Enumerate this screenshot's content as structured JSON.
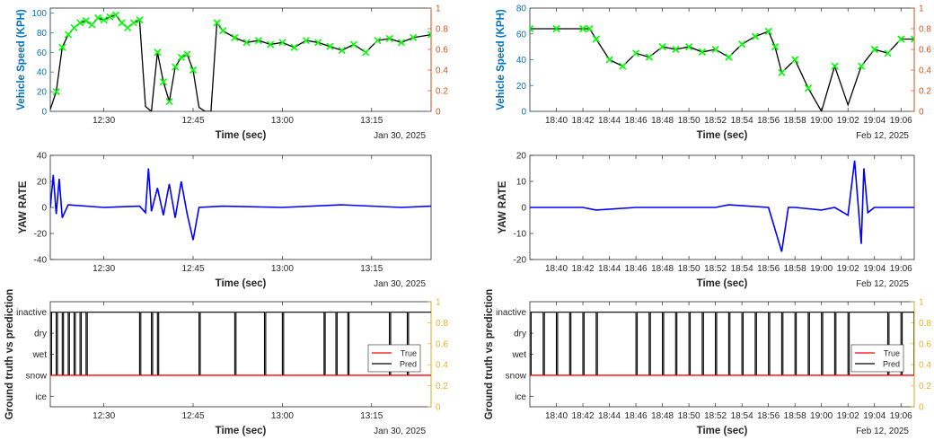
{
  "colors": {
    "speed_axis": "#0072BD",
    "right_axis_speed": "#D95319",
    "right_axis_gt": "#EDB120",
    "speed_line": "#000000",
    "speed_marker": "#00FF00",
    "yaw_line": "#0000FF",
    "true_line": "#FF0000",
    "pred_line": "#000000"
  },
  "chart_data": [
    {
      "type": "line",
      "panel": "speed-left",
      "xlabel": "Time (sec)",
      "ylabel": "Vehicle Speed (KPH)",
      "date_label": "Jan 30, 2025",
      "xlim": [
        "12:21",
        "13:25"
      ],
      "x_ticks": [
        "12:30",
        "12:45",
        "13:00",
        "13:15"
      ],
      "ylim": [
        0,
        105
      ],
      "y_ticks": [
        "0",
        "20",
        "40",
        "60",
        "80",
        "100"
      ],
      "right_ticks": [
        "0",
        "0.2",
        "0.4",
        "0.6",
        "0.8",
        "1"
      ],
      "series": [
        {
          "style": "line+x-marker",
          "x": [
            "12:21",
            "12:22",
            "12:23",
            "12:24",
            "12:25",
            "12:26",
            "12:27",
            "12:28",
            "12:29",
            "12:30",
            "12:31",
            "12:32",
            "12:33",
            "12:34",
            "12:35",
            "12:36",
            "12:37",
            "12:38",
            "12:39",
            "12:40",
            "12:41",
            "12:42",
            "12:43",
            "12:44",
            "12:45",
            "12:46",
            "12:47",
            "12:48",
            "12:49",
            "12:50",
            "12:52",
            "12:54",
            "12:56",
            "12:58",
            "13:00",
            "13:02",
            "13:04",
            "13:06",
            "13:08",
            "13:10",
            "13:12",
            "13:14",
            "13:16",
            "13:18",
            "13:20",
            "13:22",
            "13:25"
          ],
          "y": [
            2,
            20,
            65,
            78,
            85,
            90,
            92,
            88,
            95,
            93,
            96,
            98,
            90,
            85,
            90,
            93,
            5,
            0,
            60,
            30,
            10,
            45,
            55,
            58,
            42,
            4,
            0,
            0,
            90,
            82,
            75,
            70,
            72,
            68,
            70,
            65,
            72,
            70,
            66,
            62,
            68,
            60,
            72,
            74,
            70,
            75,
            78
          ]
        }
      ]
    },
    {
      "type": "line",
      "panel": "speed-right",
      "xlabel": "Time (sec)",
      "ylabel": "Vehicle Speed (KPH)",
      "date_label": "Feb 12, 2025",
      "xlim": [
        "18:38",
        "19:07"
      ],
      "x_ticks": [
        "18:40",
        "18:42",
        "18:44",
        "18:46",
        "18:48",
        "18:50",
        "18:52",
        "18:54",
        "18:56",
        "18:58",
        "19:00",
        "19:02",
        "19:04",
        "19:06"
      ],
      "ylim": [
        0,
        80
      ],
      "y_ticks": [
        "0",
        "20",
        "40",
        "60",
        "80"
      ],
      "right_ticks": [
        "0",
        "0.2",
        "0.4",
        "0.6",
        "0.8",
        "1"
      ],
      "series": [
        {
          "style": "line+x-marker",
          "x": [
            "18:38",
            "18:40",
            "18:42",
            "18:42.5",
            "18:43",
            "18:44",
            "18:45",
            "18:46",
            "18:47",
            "18:48",
            "18:49",
            "18:50",
            "18:51",
            "18:52",
            "18:53",
            "18:54",
            "18:55",
            "18:56",
            "18:56.5",
            "18:57",
            "18:58",
            "18:59",
            "19:00",
            "19:01",
            "19:02",
            "19:03",
            "19:04",
            "19:05",
            "19:06",
            "19:07"
          ],
          "y": [
            64,
            64,
            64,
            64,
            56,
            40,
            35,
            45,
            42,
            50,
            48,
            50,
            46,
            48,
            42,
            52,
            58,
            62,
            50,
            30,
            40,
            18,
            0,
            35,
            5,
            35,
            48,
            45,
            56,
            56
          ]
        }
      ]
    },
    {
      "type": "line",
      "panel": "yaw-left",
      "xlabel": "Time (sec)",
      "ylabel": "YAW RATE",
      "date_label": "Jan 30, 2025",
      "xlim": [
        "12:21",
        "13:25"
      ],
      "x_ticks": [
        "12:30",
        "12:45",
        "13:00",
        "13:15"
      ],
      "ylim": [
        -40,
        40
      ],
      "y_ticks": [
        "-40",
        "-20",
        "0",
        "20",
        "40"
      ],
      "series": [
        {
          "style": "line",
          "x": [
            "12:21",
            "12:21.5",
            "12:22",
            "12:22.5",
            "12:23",
            "12:24",
            "12:30",
            "12:36",
            "12:37",
            "12:37.5",
            "12:38",
            "12:39",
            "12:40",
            "12:41",
            "12:42",
            "12:43",
            "12:44",
            "12:45",
            "12:46",
            "12:50",
            "13:00",
            "13:10",
            "13:20",
            "13:25"
          ],
          "y": [
            0,
            25,
            -5,
            22,
            -8,
            2,
            0,
            1,
            -4,
            30,
            -3,
            15,
            -6,
            18,
            -8,
            20,
            -5,
            -25,
            0,
            1,
            0,
            2,
            0,
            1
          ]
        }
      ]
    },
    {
      "type": "line",
      "panel": "yaw-right",
      "xlabel": "Time (sec)",
      "ylabel": "YAW RATE",
      "date_label": "Feb 12, 2025",
      "xlim": [
        "18:38",
        "19:07"
      ],
      "x_ticks": [
        "18:40",
        "18:42",
        "18:44",
        "18:46",
        "18:48",
        "18:50",
        "18:52",
        "18:54",
        "18:56",
        "18:58",
        "19:00",
        "19:02",
        "19:04",
        "19:06"
      ],
      "ylim": [
        -20,
        20
      ],
      "y_ticks": [
        "-20",
        "-10",
        "0",
        "10",
        "20"
      ],
      "series": [
        {
          "style": "line",
          "x": [
            "18:38",
            "18:42",
            "18:43",
            "18:46",
            "18:52",
            "18:53",
            "18:56",
            "18:57",
            "18:57.5",
            "18:58",
            "19:00",
            "19:01",
            "19:02",
            "19:02.5",
            "19:03",
            "19:03.2",
            "19:03.5",
            "19:04",
            "19:07"
          ],
          "y": [
            0,
            0,
            -1,
            0,
            0,
            1,
            0,
            -17,
            0,
            0,
            -1,
            0,
            -3,
            18,
            -14,
            15,
            -2,
            0,
            0
          ]
        }
      ]
    },
    {
      "type": "line",
      "panel": "gt-left",
      "xlabel": "Time (sec)",
      "ylabel": "Ground truth vs prediction",
      "date_label": "Jan 30, 2025",
      "xlim": [
        "12:21",
        "13:25"
      ],
      "x_ticks": [
        "12:30",
        "12:45",
        "13:00",
        "13:15"
      ],
      "y_categories": [
        "ice",
        "snow",
        "wet",
        "dry",
        "inactive"
      ],
      "right_ticks": [
        "0",
        "0.2",
        "0.4",
        "0.6",
        "0.8",
        "1"
      ],
      "legend": {
        "position": "right",
        "entries": [
          "True",
          "Pred"
        ]
      },
      "series": [
        {
          "name": "True",
          "state": "snow"
        },
        {
          "name": "Pred",
          "base_state": "inactive",
          "switch_to": "snow",
          "switch_times": [
            "12:21",
            "12:22",
            "12:23",
            "12:24",
            "12:25",
            "12:26",
            "12:27",
            "12:36",
            "12:38",
            "12:39",
            "12:46",
            "12:52",
            "12:57",
            "13:00",
            "13:07",
            "13:09",
            "13:11",
            "13:18",
            "13:21"
          ]
        }
      ]
    },
    {
      "type": "line",
      "panel": "gt-right",
      "xlabel": "Time (sec)",
      "ylabel": "Ground truth vs prediction",
      "date_label": "Feb 12, 2025",
      "xlim": [
        "18:38",
        "19:07"
      ],
      "x_ticks": [
        "18:40",
        "18:42",
        "18:44",
        "18:46",
        "18:48",
        "18:50",
        "18:52",
        "18:54",
        "18:56",
        "18:58",
        "19:00",
        "19:02",
        "19:04",
        "19:06"
      ],
      "y_categories": [
        "ice",
        "snow",
        "wet",
        "dry",
        "inactive"
      ],
      "right_ticks": [
        "0",
        "0.2",
        "0.4",
        "0.6",
        "0.8",
        "1"
      ],
      "legend": {
        "position": "right",
        "entries": [
          "True",
          "Pred"
        ]
      },
      "series": [
        {
          "name": "True",
          "state": "snow"
        },
        {
          "name": "Pred",
          "base_state": "inactive",
          "switch_to": "snow",
          "switch_times": [
            "18:38",
            "18:39",
            "18:40",
            "18:41",
            "18:42",
            "18:43",
            "18:46",
            "18:47",
            "18:48",
            "18:49",
            "18:50",
            "18:51",
            "18:52",
            "18:53",
            "18:54",
            "18:55",
            "18:56",
            "18:57",
            "18:58",
            "18:59",
            "19:00",
            "19:01",
            "19:02",
            "19:05",
            "19:06",
            "19:07"
          ]
        }
      ]
    }
  ]
}
